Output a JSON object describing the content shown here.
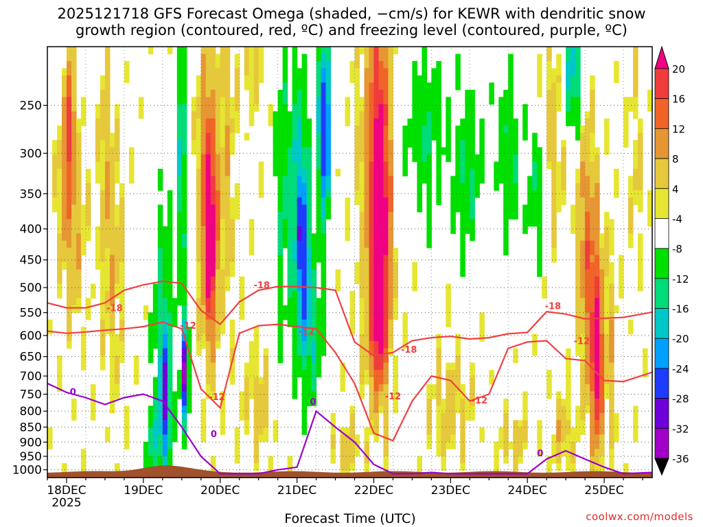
{
  "title_line1": "2025121718 GFS Forecast Omega (shaded, −cm/s) for KEWR with dendritic snow",
  "title_line2": "growth region (contoured, red, ºC) and freezing level (contoured, purple, ºC)",
  "credit": "coolwx.com/models",
  "colors": {
    "neg36": "#000000",
    "neg32": "#a0a0a0",
    "neg28": "#a000c8",
    "neg24": "#6e00dc",
    "neg20": "#1e3cff",
    "neg16": "#00a0ff",
    "neg12": "#00c8c8",
    "neg8": "#00dc78",
    "neg4": "#00e000",
    "pos4": "#e6e632",
    "pos8": "#e6c83c",
    "pos12": "#e69632",
    "pos16": "#f06428",
    "pos20": "#f03c3c",
    "top": "#f00082",
    "dgz_contour": "#f04040",
    "freezing_contour": "#9a00c8",
    "terrain": "#a0522d"
  },
  "chart_data": {
    "type": "heatmap",
    "title": "2025121718 GFS Forecast Omega (shaded, −cm/s) for KEWR with dendritic snow growth region (contoured, red, ºC) and freezing level (contoured, purple, ºC)",
    "xlabel": "Forecast Time (UTC)",
    "ylabel": "",
    "x_ticks": [
      "18DEC",
      "19DEC",
      "20DEC",
      "21DEC",
      "22DEC",
      "23DEC",
      "24DEC",
      "25DEC"
    ],
    "x_tick_hours": [
      0,
      24,
      48,
      72,
      96,
      120,
      144,
      168
    ],
    "x_sub_label": "2025",
    "xlim_hours": [
      -6,
      183
    ],
    "y_ticks": [
      250,
      300,
      350,
      400,
      450,
      500,
      550,
      600,
      650,
      700,
      750,
      800,
      850,
      900,
      950,
      1000
    ],
    "ylim_hpa": [
      200,
      1030
    ],
    "y_scale": "log",
    "colorbar_levels": [
      20,
      16,
      12,
      8,
      4,
      -4,
      -8,
      -12,
      -16,
      -20,
      -24,
      -28,
      -32,
      -36
    ],
    "contour_labels": [
      {
        "text": "-18",
        "hour": 15,
        "p": 540
      },
      {
        "text": "-18",
        "hour": 61,
        "p": 495
      },
      {
        "text": "-18",
        "hour": 107,
        "p": 632
      },
      {
        "text": "-18",
        "hour": 152,
        "p": 536
      },
      {
        "text": "-12",
        "hour": 38,
        "p": 577
      },
      {
        "text": "-12",
        "hour": 47,
        "p": 757
      },
      {
        "text": "-12",
        "hour": 75,
        "p": 590
      },
      {
        "text": "-12",
        "hour": 102,
        "p": 755
      },
      {
        "text": "-12",
        "hour": 129,
        "p": 767
      },
      {
        "text": "-12",
        "hour": 161,
        "p": 612
      },
      {
        "text": "0",
        "hour": 2,
        "p": 742
      },
      {
        "text": "0",
        "hour": 77,
        "p": 771
      },
      {
        "text": "0",
        "hour": 46,
        "p": 872
      },
      {
        "text": "0",
        "hour": 148,
        "p": 938
      }
    ],
    "dgz_minus18": {
      "hours": [
        -6,
        0,
        6,
        12,
        18,
        24,
        30,
        36,
        42,
        48,
        54,
        60,
        66,
        72,
        78,
        84,
        90,
        96,
        102,
        108,
        114,
        120,
        126,
        132,
        138,
        144,
        150,
        156,
        162,
        168,
        174,
        183
      ],
      "p": [
        530,
        540,
        540,
        530,
        505,
        495,
        488,
        492,
        545,
        575,
        528,
        505,
        498,
        498,
        500,
        505,
        615,
        648,
        640,
        612,
        605,
        602,
        608,
        605,
        596,
        593,
        548,
        553,
        563,
        562,
        560,
        549
      ]
    },
    "dgz_minus12": {
      "hours": [
        -6,
        0,
        6,
        12,
        18,
        24,
        30,
        36,
        42,
        48,
        54,
        60,
        66,
        72,
        78,
        84,
        90,
        96,
        102,
        108,
        114,
        120,
        126,
        132,
        138,
        144,
        150,
        156,
        162,
        168,
        174,
        183
      ],
      "p": [
        590,
        595,
        592,
        588,
        585,
        580,
        570,
        585,
        735,
        790,
        595,
        578,
        575,
        580,
        585,
        640,
        720,
        870,
        895,
        770,
        700,
        712,
        770,
        750,
        630,
        615,
        612,
        655,
        660,
        712,
        715,
        690
      ]
    },
    "freezing_0C": {
      "hours": [
        -6,
        0,
        6,
        12,
        18,
        24,
        30,
        36,
        42,
        48,
        54,
        60,
        66,
        72,
        78,
        84,
        90,
        96,
        102,
        108,
        114,
        120,
        126,
        132,
        138,
        144,
        150,
        156,
        162,
        168,
        174,
        183
      ],
      "p": [
        720,
        745,
        760,
        780,
        760,
        750,
        770,
        850,
        950,
        1015,
        1015,
        1015,
        1000,
        990,
        800,
        850,
        900,
        980,
        1015,
        1015,
        1010,
        1015,
        1015,
        1015,
        1015,
        1015,
        960,
        930,
        960,
        990,
        1015,
        1010
      ]
    }
  }
}
